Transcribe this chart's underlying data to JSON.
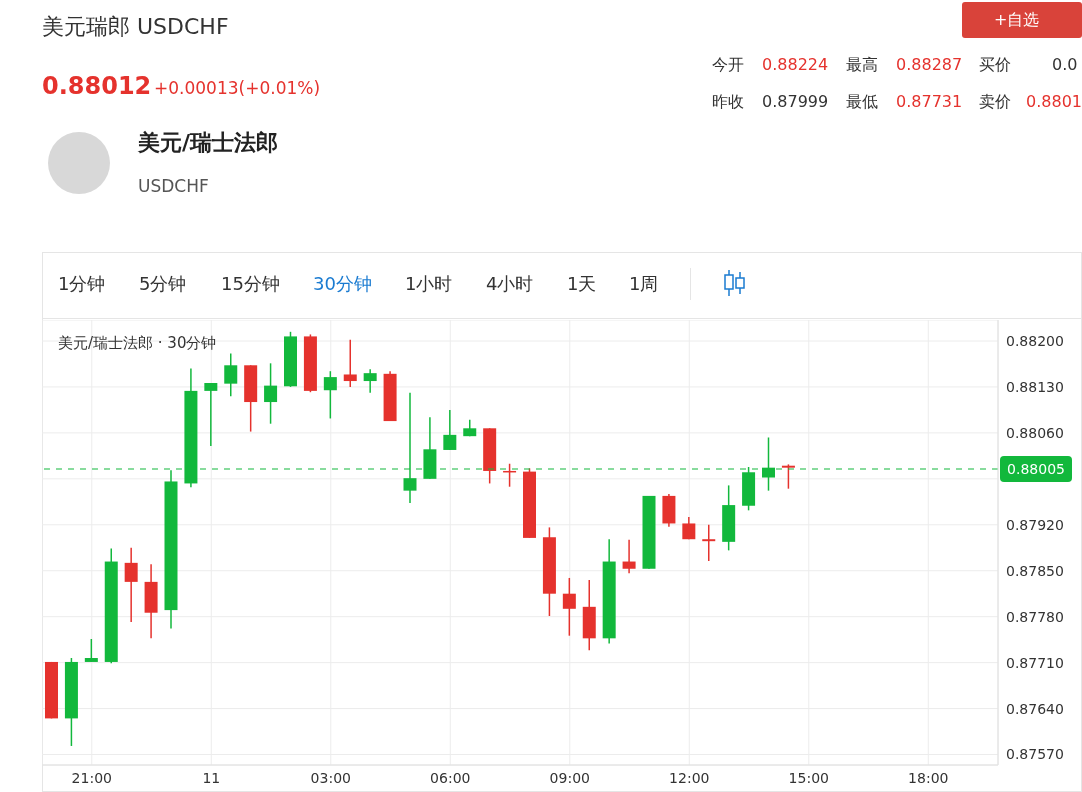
{
  "chart_data": {
    "type": "candlestick",
    "title": "美元/瑞士法郎 · 30分钟",
    "annotations": [
      "美元瑞郎 USDCHF",
      "0.88012",
      "+0.00013(+0.01%)",
      "今开",
      "0.88224",
      "最高",
      "0.88287",
      "买价",
      "0.0",
      "昨收",
      "0.87999",
      "最低",
      "0.87731",
      "卖价",
      "0.8801",
      "+自选",
      "美元/瑞士法郎",
      "USDCHF",
      "1分钟",
      "5分钟",
      "15分钟",
      "30分钟",
      "1小时",
      "4小时",
      "1天",
      "1周"
    ],
    "categories": [
      null,
      null,
      "21:00",
      null,
      null,
      null,
      null,
      null,
      "11",
      null,
      null,
      null,
      null,
      null,
      "03:00",
      null,
      null,
      null,
      null,
      null,
      "06:00",
      null,
      null,
      null,
      null,
      null,
      "09:00",
      null,
      null,
      null,
      null,
      null,
      "12:00",
      null,
      null,
      null,
      null,
      null,
      "15:00",
      null,
      null,
      null,
      null,
      null,
      "18:00",
      null,
      null,
      null
    ],
    "ohlc": [
      [
        0.87711,
        0.87711,
        0.87625,
        0.87625
      ],
      [
        0.87625,
        0.87717,
        0.87583,
        0.87711
      ],
      [
        0.87711,
        0.87746,
        0.87711,
        0.87717
      ],
      [
        0.87711,
        0.87884,
        0.87709,
        0.87864
      ],
      [
        0.87862,
        0.87885,
        0.87772,
        0.87833
      ],
      [
        0.87833,
        0.8786,
        0.87747,
        0.87786
      ],
      [
        0.8779,
        0.88003,
        0.87762,
        0.87986
      ],
      [
        0.87983,
        0.88158,
        0.87977,
        0.88124
      ],
      [
        0.88124,
        0.88136,
        0.8804,
        0.88136
      ],
      [
        0.88135,
        0.88181,
        0.88116,
        0.88163
      ],
      [
        0.88163,
        0.88163,
        0.88062,
        0.88107
      ],
      [
        0.88107,
        0.88166,
        0.88074,
        0.88132
      ],
      [
        0.88131,
        0.88214,
        0.8813,
        0.88207
      ],
      [
        0.88207,
        0.8821,
        0.88122,
        0.88124
      ],
      [
        0.88125,
        0.88154,
        0.88082,
        0.88145
      ],
      [
        0.88149,
        0.88202,
        0.8813,
        0.88139
      ],
      [
        0.88139,
        0.88157,
        0.88121,
        0.88151
      ],
      [
        0.8815,
        0.88154,
        0.88078,
        0.88078
      ],
      [
        0.87972,
        0.88121,
        0.87953,
        0.87991
      ],
      [
        0.8799,
        0.88084,
        0.8799,
        0.88035
      ],
      [
        0.88034,
        0.88095,
        0.88034,
        0.88057
      ],
      [
        0.88055,
        0.8808,
        0.88055,
        0.88067
      ],
      [
        0.88067,
        0.88067,
        0.87983,
        0.88002
      ],
      [
        0.88002,
        0.88013,
        0.87978,
        0.88
      ],
      [
        0.88001,
        0.88006,
        0.879,
        0.879
      ],
      [
        0.87901,
        0.87916,
        0.87781,
        0.87815
      ],
      [
        0.87815,
        0.87839,
        0.87751,
        0.87792
      ],
      [
        0.87795,
        0.87836,
        0.87729,
        0.87747
      ],
      [
        0.87747,
        0.87898,
        0.87739,
        0.87864
      ],
      [
        0.87864,
        0.87897,
        0.87846,
        0.87853
      ],
      [
        0.87853,
        0.87964,
        0.87853,
        0.87964
      ],
      [
        0.87964,
        0.87967,
        0.87917,
        0.87922
      ],
      [
        0.87922,
        0.87932,
        0.87898,
        0.87898
      ],
      [
        0.87898,
        0.8792,
        0.87865,
        0.87895
      ],
      [
        0.87894,
        0.8798,
        0.87881,
        0.8795
      ],
      [
        0.87949,
        0.88008,
        0.87942,
        0.88
      ],
      [
        0.87992,
        0.88053,
        0.87972,
        0.88007
      ],
      [
        0.8801,
        0.88012,
        0.87975,
        0.88007
      ],
      null,
      null,
      null,
      null,
      null,
      null,
      null,
      null,
      null,
      null
    ],
    "colors": [
      "#e5322d",
      "#12b83c",
      "#12b83c",
      "#12b83c",
      "#e5322d",
      "#e5322d",
      "#12b83c",
      "#12b83c",
      "#12b83c",
      "#12b83c",
      "#e5322d",
      "#12b83c",
      "#12b83c",
      "#e5322d",
      "#12b83c",
      "#e5322d",
      "#12b83c",
      "#e5322d",
      "#12b83c",
      "#12b83c",
      "#12b83c",
      "#12b83c",
      "#e5322d",
      "#e5322d",
      "#e5322d",
      "#e5322d",
      "#e5322d",
      "#e5322d",
      "#12b83c",
      "#e5322d",
      "#12b83c",
      "#e5322d",
      "#e5322d",
      "#e5322d",
      "#12b83c",
      "#12b83c",
      "#12b83c",
      "#e5322d",
      null,
      null,
      null,
      null,
      null,
      null,
      null,
      null,
      null,
      null
    ],
    "ylim": [
      0.87554,
      0.88232
    ],
    "yticks": [
      {
        "value": 0.882,
        "label": "0.88200"
      },
      {
        "value": 0.8813,
        "label": "0.88130"
      },
      {
        "value": 0.8806,
        "label": "0.88060"
      },
      {
        "value": 0.8799,
        "label": null
      },
      {
        "value": 0.8792,
        "label": "0.87920"
      },
      {
        "value": 0.8785,
        "label": "0.87850"
      },
      {
        "value": 0.8778,
        "label": "0.87780"
      },
      {
        "value": 0.8771,
        "label": "0.87710"
      },
      {
        "value": 0.8764,
        "label": "0.87640"
      },
      {
        "value": 0.8757,
        "label": "0.87570"
      }
    ],
    "ref_lines": [
      {
        "axis": "y",
        "value": 0.88005,
        "label": "0.88005",
        "color": "#12b83c",
        "line_style": "dashed"
      }
    ],
    "grid": true
  }
}
